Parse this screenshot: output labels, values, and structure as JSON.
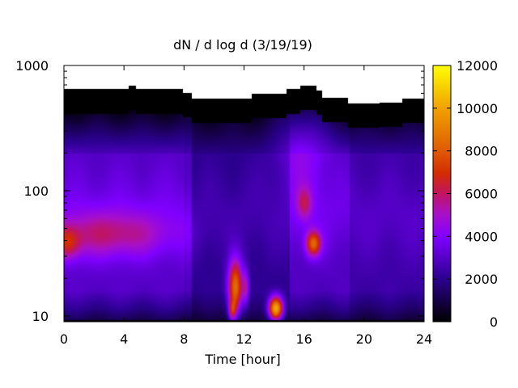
{
  "chart_data": {
    "type": "heatmap",
    "title": "dN / d log d (3/19/19)",
    "xlabel": "Time [hour]",
    "ylabel": "",
    "xlim": [
      0,
      24
    ],
    "ylim": [
      9,
      1000
    ],
    "y_scale": "log",
    "x_ticks": [
      0,
      4,
      8,
      12,
      16,
      20,
      24
    ],
    "y_ticks": [
      10,
      100,
      1000
    ],
    "colorbar": {
      "range": [
        0,
        12000
      ],
      "ticks": [
        0,
        2000,
        4000,
        6000,
        8000,
        10000,
        12000
      ],
      "colormap": "gnuplot-default (black-blue-purple-red-yellow)"
    },
    "grid": false,
    "background_fill": "#20002e",
    "no_data_color": "#ffffff",
    "upper_boundary_diameter": [
      [
        0,
        650
      ],
      [
        4.3,
        650
      ],
      [
        4.3,
        700
      ],
      [
        4.8,
        700
      ],
      [
        4.8,
        650
      ],
      [
        7.9,
        650
      ],
      [
        7.9,
        610
      ],
      [
        8.5,
        610
      ],
      [
        8.5,
        550
      ],
      [
        12.5,
        550
      ],
      [
        12.5,
        600
      ],
      [
        14.8,
        600
      ],
      [
        14.8,
        650
      ],
      [
        15.7,
        650
      ],
      [
        15.7,
        700
      ],
      [
        16.8,
        700
      ],
      [
        16.8,
        640
      ],
      [
        17.2,
        640
      ],
      [
        17.2,
        560
      ],
      [
        18.9,
        560
      ],
      [
        18.9,
        500
      ],
      [
        21,
        500
      ],
      [
        21,
        510
      ],
      [
        22.5,
        510
      ],
      [
        22.5,
        550
      ],
      [
        24,
        550
      ]
    ],
    "features": [
      {
        "x": 3.0,
        "y": 45,
        "sx": 2.8,
        "sy": 0.13,
        "value": 2300
      },
      {
        "x": 0.2,
        "y": 38,
        "sx": 0.6,
        "sy": 0.09,
        "value": 2500
      },
      {
        "x": 15.8,
        "y": 250,
        "sx": 1.3,
        "sy": 0.35,
        "value": 1500
      },
      {
        "x": 16.0,
        "y": 80,
        "sx": 0.35,
        "sy": 0.09,
        "value": 2200
      },
      {
        "x": 16.6,
        "y": 38,
        "sx": 0.35,
        "sy": 0.07,
        "value": 5000
      },
      {
        "x": 11.4,
        "y": 17,
        "sx": 0.35,
        "sy": 0.16,
        "value": 6500
      },
      {
        "x": 11.2,
        "y": 11,
        "sx": 0.18,
        "sy": 0.06,
        "value": 3500
      },
      {
        "x": 12.1,
        "y": 17,
        "sx": 0.15,
        "sy": 0.1,
        "value": 2500
      },
      {
        "x": 14.1,
        "y": 11.5,
        "sx": 0.35,
        "sy": 0.07,
        "value": 9000
      }
    ]
  }
}
